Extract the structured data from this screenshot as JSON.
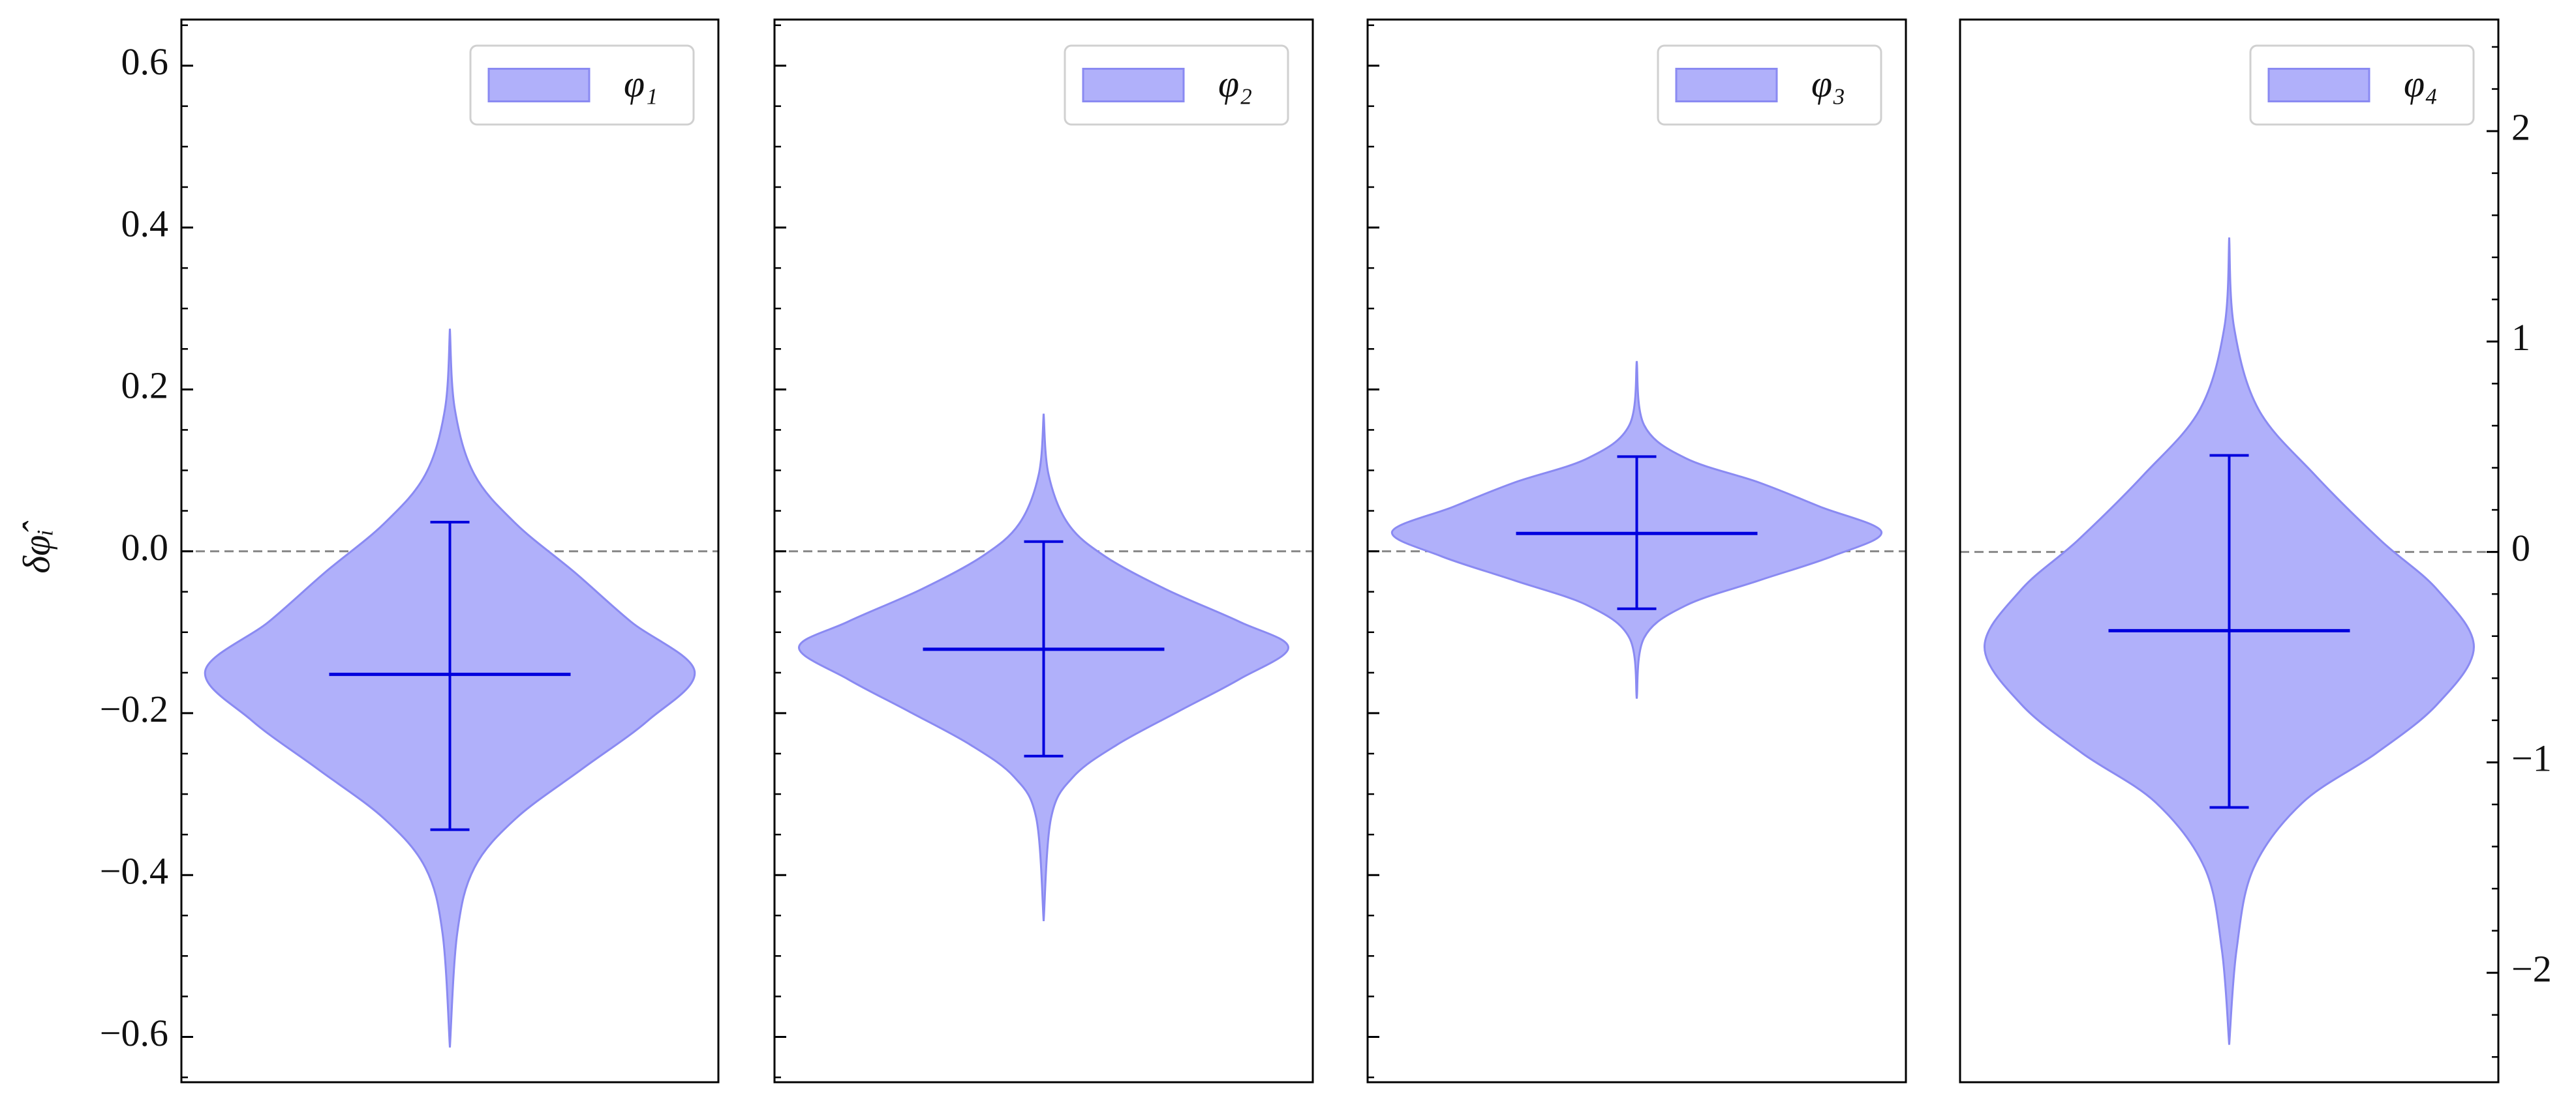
{
  "chart_data": [
    {
      "type": "violin",
      "name": "φ₁",
      "ylabel": "δφ̂ᵢ",
      "color": "#b0b0fa",
      "edgecolor": "#8a8af2",
      "linecolor": "#0000dd",
      "mean": -0.152,
      "whisker_low": -0.344,
      "whisker_high": 0.036,
      "density": {
        "y": [
          0.275,
          0.176,
          0.095,
          0.034,
          -0.026,
          -0.087,
          -0.148,
          -0.209,
          -0.269,
          -0.33,
          -0.391,
          -0.472,
          -0.613
        ],
        "width": [
          0,
          0.02,
          0.1,
          0.27,
          0.51,
          0.74,
          1.0,
          0.81,
          0.54,
          0.27,
          0.1,
          0.03,
          0
        ]
      },
      "ylim": [
        -0.656,
        0.657
      ],
      "ytick_side": "left",
      "ytick_labels": true,
      "yticks": [
        {
          "value": -0.6,
          "label": "−0.6"
        },
        {
          "value": -0.4,
          "label": "−0.4"
        },
        {
          "value": -0.2,
          "label": "−0.2"
        },
        {
          "value": 0,
          "label": "0.0"
        },
        0.2,
        0.4,
        0.6
      ],
      "minor_yticks": [
        -0.65,
        -0.55,
        -0.5,
        -0.45,
        -0.35,
        -0.3,
        -0.25,
        -0.15,
        -0.1,
        -0.05,
        0.05,
        0.1,
        0.15,
        0.25,
        0.3,
        0.35,
        0.45,
        0.5,
        0.55,
        0.65
      ],
      "hline": 0,
      "legend": "upper right"
    },
    {
      "type": "violin",
      "name": "φ₂",
      "color": "#b0b0fa",
      "edgecolor": "#8a8af2",
      "linecolor": "#0000dd",
      "mean": -0.121,
      "whisker_low": -0.253,
      "whisker_high": 0.012,
      "density": {
        "y": [
          0.17,
          0.095,
          0.034,
          -0.006,
          -0.047,
          -0.087,
          -0.119,
          -0.158,
          -0.198,
          -0.239,
          -0.279,
          -0.33,
          -0.457
        ],
        "width": [
          0,
          0.02,
          0.1,
          0.25,
          0.5,
          0.8,
          1.0,
          0.8,
          0.55,
          0.3,
          0.12,
          0.03,
          0
        ]
      },
      "ylim": [
        -0.656,
        0.657
      ],
      "ytick_side": "left",
      "ytick_labels": false,
      "yticks": [
        -0.6,
        -0.4,
        -0.2,
        0,
        0.2,
        0.4,
        0.6
      ],
      "minor_yticks": [
        -0.65,
        -0.55,
        -0.5,
        -0.45,
        -0.35,
        -0.3,
        -0.25,
        -0.15,
        -0.1,
        -0.05,
        0.05,
        0.1,
        0.15,
        0.25,
        0.3,
        0.35,
        0.45,
        0.5,
        0.55,
        0.65
      ],
      "hline": 0,
      "legend": "upper right"
    },
    {
      "type": "violin",
      "name": "φ₃",
      "color": "#b0b0fa",
      "edgecolor": "#8a8af2",
      "linecolor": "#0000dd",
      "mean": 0.022,
      "whisker_low": -0.071,
      "whisker_high": 0.117,
      "density": {
        "y": [
          0.235,
          0.156,
          0.115,
          0.085,
          0.055,
          0.024,
          -0.006,
          -0.036,
          -0.067,
          -0.107,
          -0.182
        ],
        "width": [
          0,
          0.03,
          0.2,
          0.5,
          0.75,
          1.0,
          0.8,
          0.5,
          0.2,
          0.03,
          0
        ]
      },
      "ylim": [
        -0.656,
        0.657
      ],
      "ytick_side": "left",
      "ytick_labels": false,
      "yticks": [
        -0.6,
        -0.4,
        -0.2,
        0,
        0.2,
        0.4,
        0.6
      ],
      "minor_yticks": [
        -0.65,
        -0.55,
        -0.5,
        -0.45,
        -0.35,
        -0.3,
        -0.25,
        -0.15,
        -0.1,
        -0.05,
        0.05,
        0.1,
        0.15,
        0.25,
        0.3,
        0.35,
        0.45,
        0.5,
        0.55,
        0.65
      ],
      "hline": 0,
      "legend": "upper right"
    },
    {
      "type": "violin",
      "name": "φ₄",
      "color": "#b0b0fa",
      "edgecolor": "#8a8af2",
      "linecolor": "#0000dd",
      "mean": -0.374,
      "whisker_low": -1.214,
      "whisker_high": 0.459,
      "density": {
        "y": [
          1.494,
          1.066,
          0.677,
          0.366,
          0.054,
          -0.179,
          -0.451,
          -0.724,
          -0.957,
          -1.191,
          -1.502,
          -1.891,
          -2.342
        ],
        "width": [
          0,
          0.02,
          0.12,
          0.35,
          0.62,
          0.85,
          1.0,
          0.85,
          0.6,
          0.3,
          0.1,
          0.03,
          0
        ]
      },
      "ylim": [
        -2.52,
        2.53
      ],
      "ytick_side": "right",
      "ytick_labels": true,
      "yticks": [
        {
          "value": -2,
          "label": "−2"
        },
        {
          "value": -1,
          "label": "−1"
        },
        0,
        1,
        2
      ],
      "minor_yticks": [
        -2.4,
        -2.2,
        -1.8,
        -1.6,
        -1.4,
        -1.2,
        -0.8,
        -0.6,
        -0.4,
        -0.2,
        0.2,
        0.4,
        0.6,
        0.8,
        1.2,
        1.4,
        1.6,
        1.8,
        2.2,
        2.4
      ],
      "hline": 0,
      "legend": "upper right"
    }
  ]
}
